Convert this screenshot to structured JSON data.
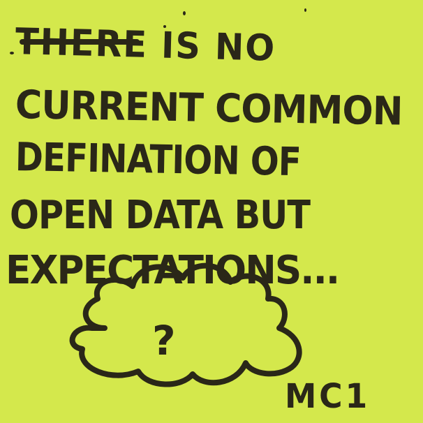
{
  "note": {
    "background_color": "#d4e84c",
    "ink_color": "#2a2718",
    "lines": [
      "THERE IS NO",
      "CURRENT COMMON",
      "DEFINATION OF",
      "OPEN DATA BUT",
      "EXPECTATIONS..."
    ],
    "cloud_symbol": "?",
    "signature": "MC1"
  }
}
